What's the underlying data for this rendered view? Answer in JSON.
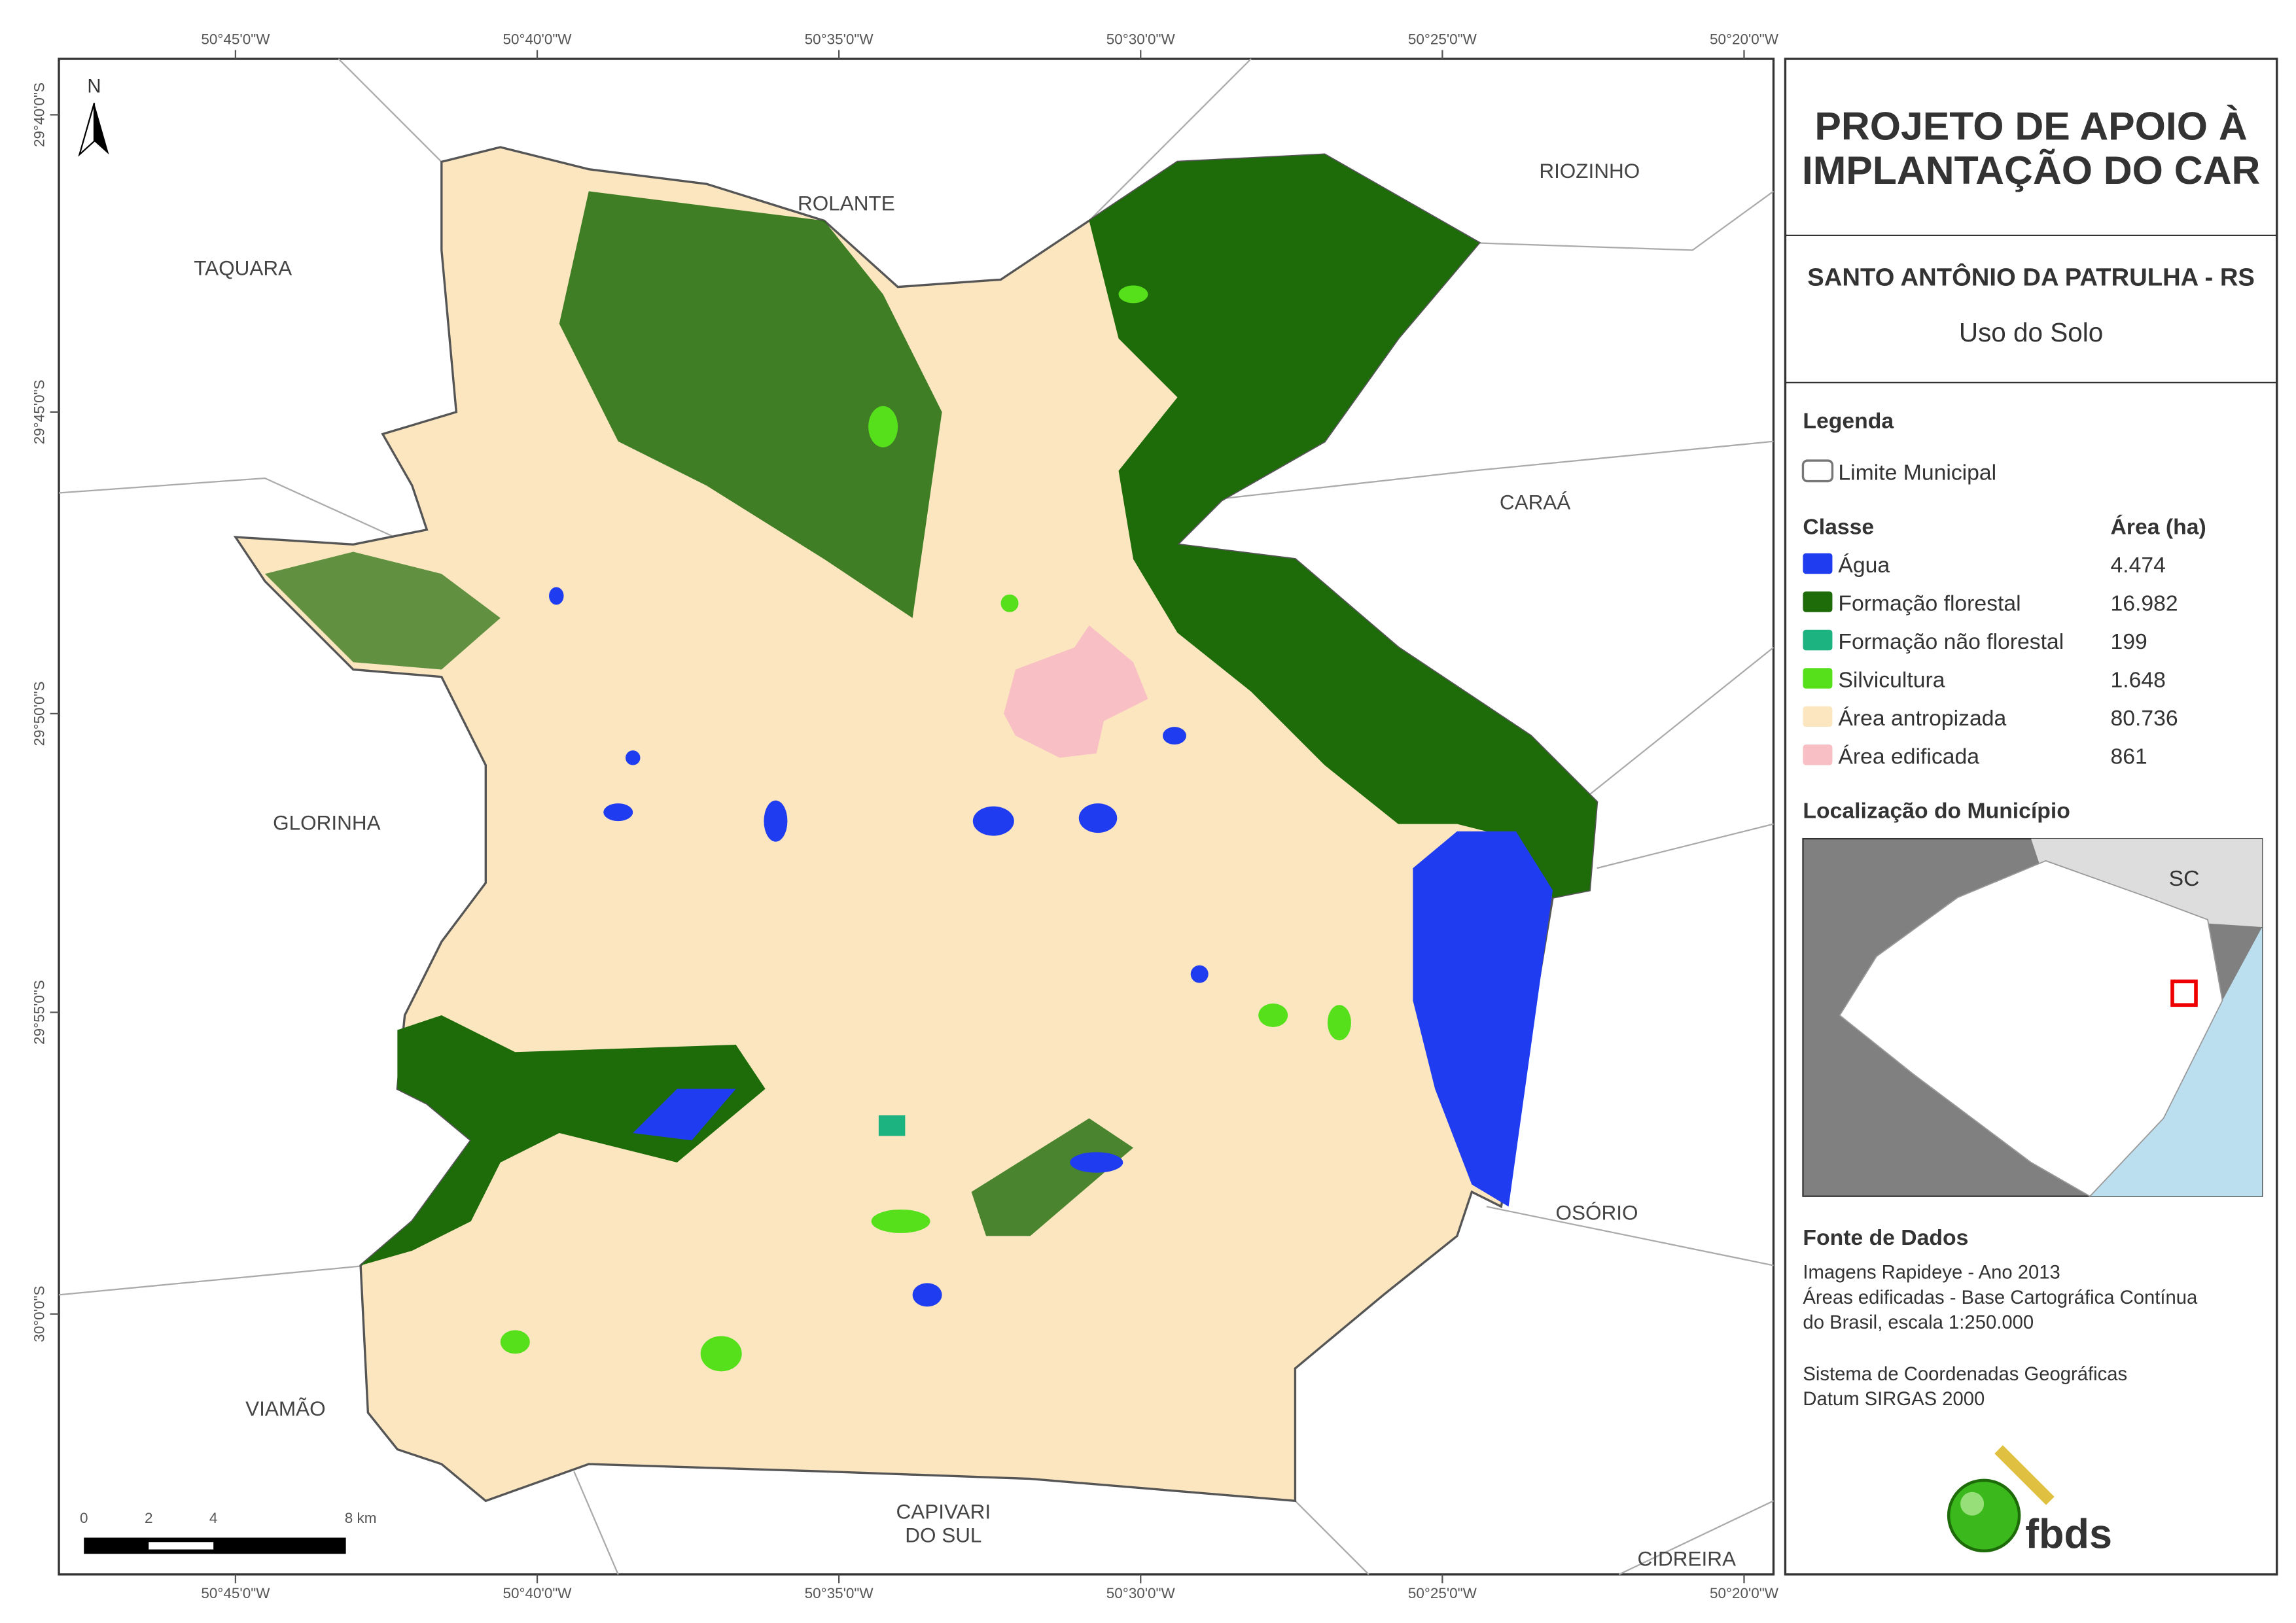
{
  "map": {
    "top_ticks": [
      "50°45'0\"W",
      "50°40'0\"W",
      "50°35'0\"W",
      "50°30'0\"W",
      "50°25'0\"W",
      "50°20'0\"W"
    ],
    "bottom_ticks": [
      "50°45'0\"W",
      "50°40'0\"W",
      "50°35'0\"W",
      "50°30'0\"W",
      "50°25'0\"W",
      "50°20'0\"W"
    ],
    "left_ticks": [
      "29°40'0\"S",
      "29°45'0\"S",
      "29°50'0\"S",
      "29°55'0\"S",
      "30°0'0\"S"
    ],
    "places": [
      "TAQUARA",
      "ROLANTE",
      "RIOZINHO",
      "CARAÁ",
      "GLORINHA",
      "OSÓRIO",
      "VIAMÃO",
      "CAPIVARI",
      "DO SUL",
      "CIDREIRA"
    ],
    "north": "N",
    "scale": [
      "0",
      "2",
      "4",
      "8 km"
    ]
  },
  "panel": {
    "title": [
      "PROJETO DE APOIO À",
      "IMPLANTAÇÃO DO CAR"
    ],
    "municipality": "SANTO ANTÔNIO DA PATRULHA - RS",
    "subtitle": "Uso do Solo",
    "legend_title": "Legenda",
    "boundary": "Limite Municipal",
    "class_header": "Classe",
    "area_header": "Área (ha)",
    "classes": [
      {
        "name": "Água",
        "area": "4.474",
        "color": "#1f3cf0"
      },
      {
        "name": "Formação florestal",
        "area": "16.982",
        "color": "#1e6b0a"
      },
      {
        "name": "Formação não florestal",
        "area": "199",
        "color": "#1db380"
      },
      {
        "name": "Silvicultura",
        "area": "1.648",
        "color": "#55e01b"
      },
      {
        "name": "Área antropizada",
        "area": "80.736",
        "color": "#fbe6c0"
      },
      {
        "name": "Área edificada",
        "area": "861",
        "color": "#f8c0c4"
      }
    ],
    "location_title": "Localização do Município",
    "neighbor_state": "SC",
    "source_title": "Fonte de Dados",
    "source_lines": [
      "Imagens Rapideye - Ano 2013",
      "Áreas edificadas - Base Cartográfica Contínua",
      "do Brasil, escala 1:250.000",
      "Sistema de Coordenadas Geográficas",
      "Datum SIRGAS 2000"
    ],
    "logo": "fbds"
  }
}
